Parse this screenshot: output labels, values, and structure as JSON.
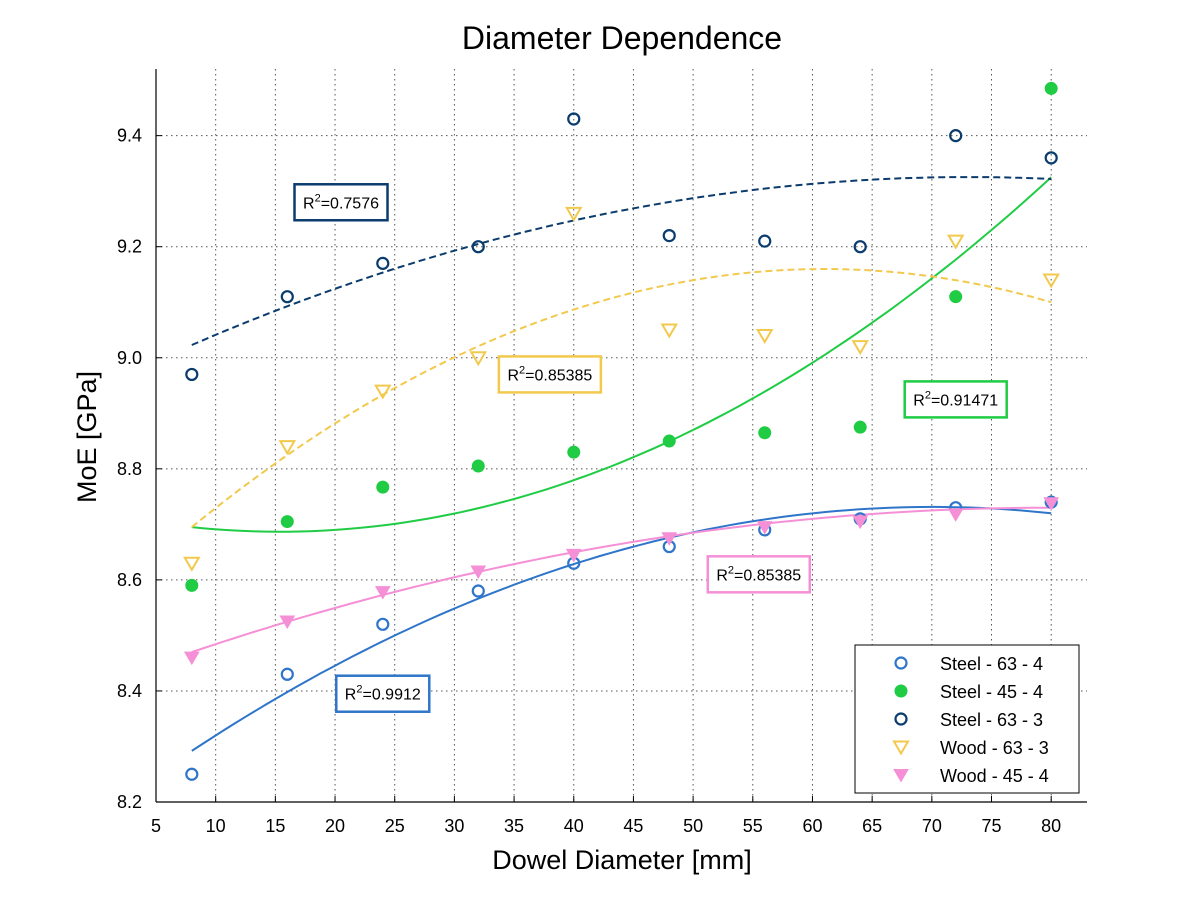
{
  "chart_data": {
    "type": "scatter",
    "title": "Diameter Dependence",
    "xlabel": "Dowel Diameter [mm]",
    "ylabel": "MoE [GPa]",
    "xlim": [
      5,
      83
    ],
    "ylim": [
      8.2,
      9.52
    ],
    "xticks": [
      5,
      10,
      15,
      20,
      25,
      30,
      35,
      40,
      45,
      50,
      55,
      60,
      65,
      70,
      75,
      80
    ],
    "yticks": [
      8.2,
      8.4,
      8.6,
      8.8,
      9.0,
      9.2,
      9.4
    ],
    "ytick_labels": [
      "8.2",
      "8.4",
      "8.6",
      "8.8",
      "9.0",
      "9.2",
      "9.4"
    ],
    "grid": true,
    "legend_position": "bottom-right",
    "x": [
      8,
      16,
      24,
      32,
      40,
      48,
      56,
      64,
      72,
      80
    ],
    "series": [
      {
        "name": "Steel - 63 - 4",
        "marker": "circle-open",
        "color": "#2F75C9",
        "values": [
          8.25,
          8.43,
          8.52,
          8.58,
          8.63,
          8.66,
          8.69,
          8.71,
          8.73,
          8.74
        ],
        "fit_dash": "solid",
        "fit_anchors": [
          [
            8,
            8.292
          ],
          [
            44,
            8.654
          ],
          [
            80,
            8.72
          ]
        ],
        "r2": "0.9912"
      },
      {
        "name": "Steel - 45 - 4",
        "marker": "circle-filled",
        "color": "#1FCC44",
        "values": [
          8.59,
          8.705,
          8.767,
          8.805,
          8.83,
          8.85,
          8.865,
          8.875,
          9.11,
          9.485
        ],
        "fit_dash": "solid",
        "fit_anchors": [
          [
            8,
            8.695
          ],
          [
            44,
            8.812
          ],
          [
            80,
            9.325
          ]
        ],
        "r2": "0.91471"
      },
      {
        "name": "Steel - 63 - 3",
        "marker": "circle-open",
        "color": "#0B3C6E",
        "values": [
          8.97,
          9.11,
          9.17,
          9.2,
          9.43,
          9.22,
          9.21,
          9.2,
          9.4,
          9.36
        ],
        "fit_dash": "dashed",
        "fit_anchors": [
          [
            8,
            9.023
          ],
          [
            44,
            9.265
          ],
          [
            80,
            9.322
          ]
        ],
        "r2": "0.7576"
      },
      {
        "name": "Wood - 63 - 3",
        "marker": "triangle-open",
        "color": "#F2C94C",
        "values": [
          8.63,
          8.84,
          8.94,
          9.0,
          9.26,
          9.05,
          9.04,
          9.02,
          9.21,
          9.14
        ],
        "fit_dash": "dashed",
        "fit_anchors": [
          [
            8,
            8.695
          ],
          [
            44,
            9.112
          ],
          [
            80,
            9.1
          ]
        ],
        "r2": "0.85385"
      },
      {
        "name": "Wood - 45 - 4",
        "marker": "triangle-filled",
        "color": "#F58FD6",
        "values": [
          8.46,
          8.525,
          8.578,
          8.615,
          8.645,
          8.675,
          8.695,
          8.705,
          8.718,
          8.738
        ],
        "fit_dash": "solid",
        "fit_anchors": [
          [
            8,
            8.47
          ],
          [
            44,
            8.665
          ],
          [
            80,
            8.73
          ]
        ],
        "r2": "0.85385"
      }
    ],
    "annotations": [
      {
        "prefix": "R",
        "sup": "2",
        "text": "=0.7576",
        "x": 20.5,
        "y": 9.28,
        "color": "#0B3C6E"
      },
      {
        "prefix": "R",
        "sup": "2",
        "text": "=0.85385",
        "x": 38,
        "y": 8.97,
        "color": "#F2C94C"
      },
      {
        "prefix": "R",
        "sup": "2",
        "text": "=0.91471",
        "x": 72,
        "y": 8.925,
        "color": "#1FCC44"
      },
      {
        "prefix": "R",
        "sup": "2",
        "text": "=0.85385",
        "x": 55.5,
        "y": 8.61,
        "color": "#F58FD6"
      },
      {
        "prefix": "R",
        "sup": "2",
        "text": "=0.9912",
        "x": 24,
        "y": 8.395,
        "color": "#2F75C9"
      }
    ]
  }
}
